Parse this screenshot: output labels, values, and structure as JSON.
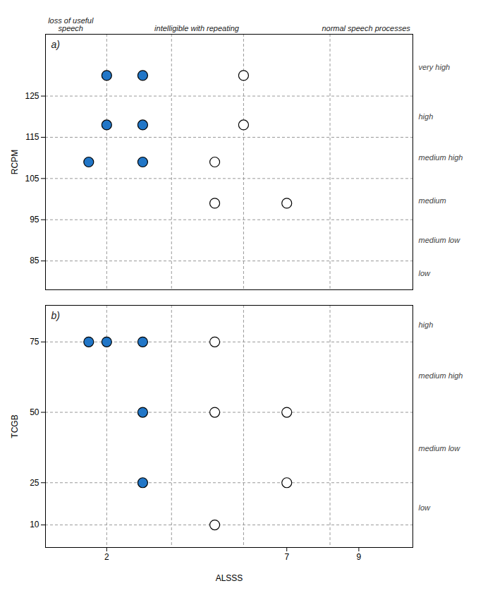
{
  "chart_data": [
    {
      "type": "scatter",
      "panel_label": "a)",
      "ylabel": "RCPM",
      "xlim": [
        0.3,
        10.5
      ],
      "xticks": [
        2,
        7,
        9
      ],
      "ylim": [
        78,
        140
      ],
      "yticks": [
        85,
        95,
        105,
        115,
        125
      ],
      "grid": true,
      "tick_labels": "y",
      "vlines": {
        "values": [
          2.0,
          3.8,
          5.8,
          8.2
        ],
        "color": "#999999"
      },
      "header_labels": [
        {
          "x": 1.0,
          "text": "loss of useful\nspeech"
        },
        {
          "x": 4.5,
          "text": "intelligible with repeating"
        },
        {
          "x": 9.2,
          "text": "normal speech processes"
        }
      ],
      "annotations": [
        {
          "y": 132,
          "text": "very high"
        },
        {
          "y": 120,
          "text": "high"
        },
        {
          "y": 110,
          "text": "medium high"
        },
        {
          "y": 99.5,
          "text": "medium"
        },
        {
          "y": 90,
          "text": "medium low"
        },
        {
          "y": 82,
          "text": "low"
        }
      ],
      "series": [
        {
          "type": "scatter",
          "marker": "circle",
          "color": "#2176C7",
          "x": [
            1.5,
            2.0,
            2.0,
            3.0,
            3.0,
            3.0
          ],
          "values": [
            109,
            130,
            118,
            130,
            118,
            109
          ]
        },
        {
          "type": "scatter",
          "marker": "circle",
          "color": "white",
          "x": [
            5.0,
            5.0,
            5.8,
            5.8,
            7.0
          ],
          "values": [
            109,
            99,
            130,
            118,
            99
          ]
        }
      ]
    },
    {
      "type": "scatter",
      "panel_label": "b)",
      "ylabel": "TCGB",
      "xlabel": "ALSSS",
      "xlim": [
        0.3,
        10.5
      ],
      "xticks": [
        2,
        7,
        9
      ],
      "ylim": [
        2,
        88
      ],
      "yticks": [
        10,
        25,
        50,
        75
      ],
      "grid": true,
      "vlines": {
        "values": [
          2.0,
          3.8,
          5.8,
          8.2
        ],
        "color": "#999999"
      },
      "annotations": [
        {
          "y": 81,
          "text": "high"
        },
        {
          "y": 63,
          "text": "medium high"
        },
        {
          "y": 37,
          "text": "medium low"
        },
        {
          "y": 16,
          "text": "low"
        }
      ],
      "series": [
        {
          "type": "scatter",
          "marker": "circle",
          "color": "#2176C7",
          "x": [
            1.5,
            2.0,
            3.0,
            3.0,
            3.0
          ],
          "values": [
            75,
            75,
            75,
            50,
            25
          ]
        },
        {
          "type": "scatter",
          "marker": "circle",
          "color": "white",
          "x": [
            5.0,
            5.0,
            5.0,
            7.0,
            7.0
          ],
          "values": [
            75,
            50,
            10,
            50,
            25
          ]
        }
      ]
    }
  ]
}
